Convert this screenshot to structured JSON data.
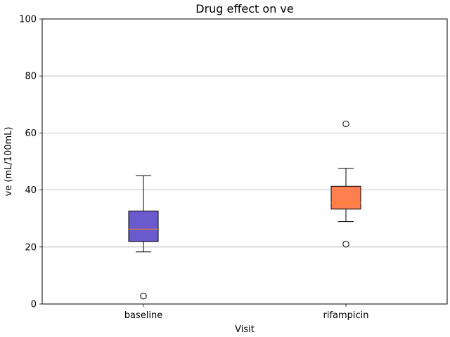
{
  "chart_data": {
    "type": "box",
    "title": "Drug effect on ve",
    "xlabel": "Visit",
    "ylabel": "ve (mL/100mL)",
    "ylim": [
      0,
      100
    ],
    "yticks": [
      0,
      20,
      40,
      60,
      80,
      100
    ],
    "grid": "y-major",
    "categories": [
      "baseline",
      "rifampicin"
    ],
    "boxes": [
      {
        "category": "baseline",
        "color": "#6a5acd",
        "whisker_low": 18.3,
        "q1": 21.9,
        "median": 26.3,
        "q3": 32.6,
        "whisker_high": 45.0,
        "outliers": [
          2.8
        ]
      },
      {
        "category": "rifampicin",
        "color": "#ff7f50",
        "whisker_low": 28.9,
        "q1": 33.3,
        "median": 35.5,
        "q3": 41.3,
        "whisker_high": 47.6,
        "outliers": [
          63.2,
          21.0
        ]
      }
    ],
    "median_color": "#ff7f0e",
    "grid_color": "#b0b0b0"
  }
}
